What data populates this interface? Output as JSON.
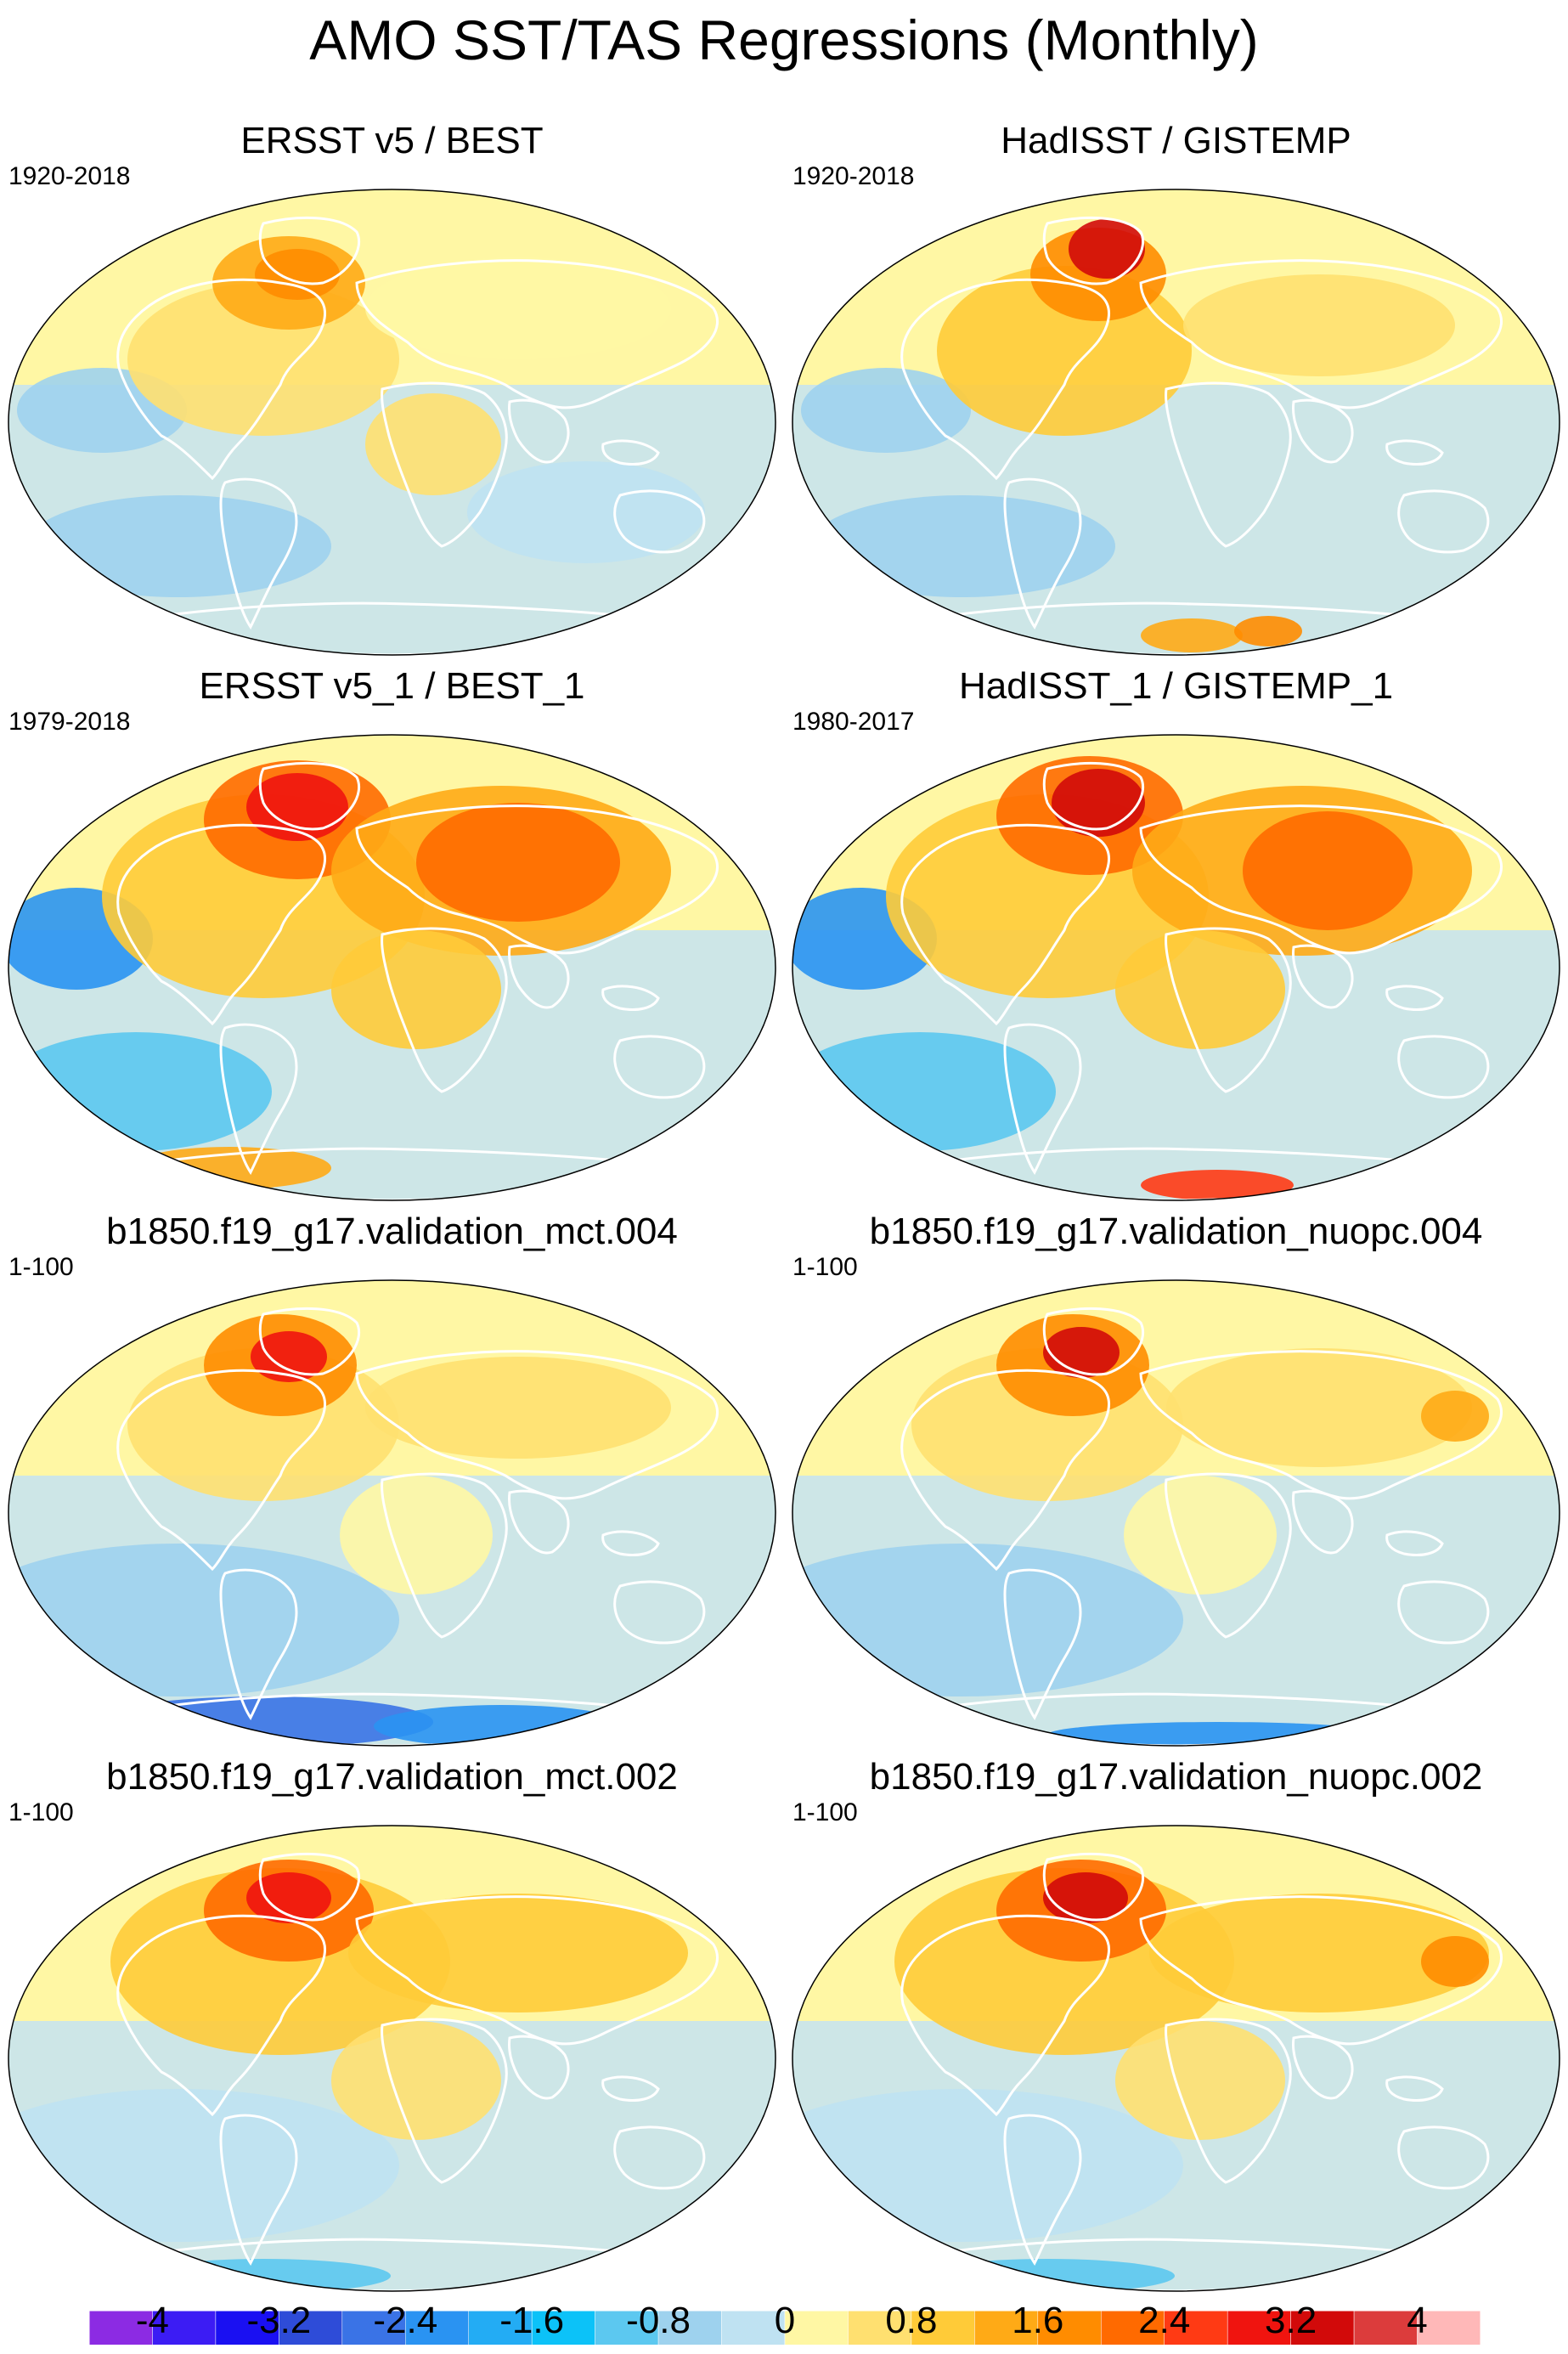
{
  "chart_data": {
    "type": "heatmap",
    "title": "AMO SST/TAS Regressions (Monthly)",
    "panels": [
      {
        "title": "ERSST v5 / BEST",
        "period": "1920-2018"
      },
      {
        "title": "HadISST / GISTEMP",
        "period": "1920-2018"
      },
      {
        "title": "ERSST v5_1 / BEST_1",
        "period": "1979-2018"
      },
      {
        "title": "HadISST_1 / GISTEMP_1",
        "period": "1980-2017"
      },
      {
        "title": "b1850.f19_g17.validation_mct.004",
        "period": "1-100"
      },
      {
        "title": "b1850.f19_g17.validation_nuopc.004",
        "period": "1-100"
      },
      {
        "title": "b1850.f19_g17.validation_mct.002",
        "period": "1-100"
      },
      {
        "title": "b1850.f19_g17.validation_nuopc.002",
        "period": "1-100"
      }
    ],
    "colorbar": {
      "ticks": [
        "-4",
        "-3.2",
        "-2.4",
        "-1.6",
        "-0.8",
        "0",
        "0.8",
        "1.6",
        "2.4",
        "3.2",
        "4"
      ],
      "tick_values": [
        -4,
        -3.2,
        -2.4,
        -1.6,
        -0.8,
        0,
        0.8,
        1.6,
        2.4,
        3.2,
        4
      ],
      "range": [
        -4.4,
        4.4
      ],
      "colors": [
        "#8c2be3",
        "#3c1cf4",
        "#1a10f2",
        "#2e4cd8",
        "#3a73e6",
        "#2a93f2",
        "#23acf4",
        "#0cc2f8",
        "#5cc8f0",
        "#9ed2ee",
        "#bfe2f2",
        "#fff7a4",
        "#ffe070",
        "#ffcb38",
        "#ffaa16",
        "#ff8c00",
        "#ff6a00",
        "#ff3a14",
        "#f0140f",
        "#d20a0a",
        "#dc3c3c",
        "#ffb8b8"
      ]
    },
    "ocean_color": "#c4e3f3",
    "land_outline_color": "#ffffff"
  }
}
